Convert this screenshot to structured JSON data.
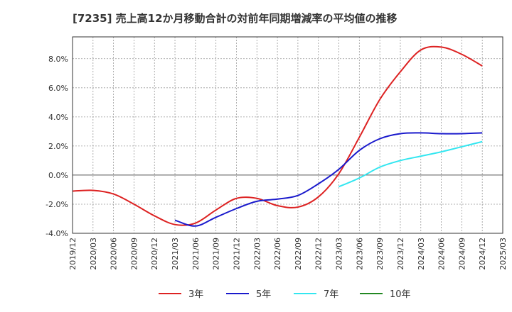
{
  "chart_data": {
    "type": "line",
    "title": "[7235]  売上高12か月移動合計の対前年同期増減率の平均値の推移",
    "xlabel": "",
    "ylabel": "",
    "x_ticks": [
      "2019/12",
      "2020/03",
      "2020/06",
      "2020/09",
      "2020/12",
      "2021/03",
      "2021/06",
      "2021/09",
      "2021/12",
      "2022/03",
      "2022/06",
      "2022/09",
      "2022/12",
      "2023/03",
      "2023/06",
      "2023/09",
      "2023/12",
      "2024/03",
      "2024/06",
      "2024/09",
      "2024/12",
      "2025/03"
    ],
    "ylim": [
      -4.0,
      9.5
    ],
    "y_ticks": [
      -4.0,
      -2.0,
      0.0,
      2.0,
      4.0,
      6.0,
      8.0
    ],
    "y_tick_labels": [
      "-4.0%",
      "-2.0%",
      "0.0%",
      "2.0%",
      "4.0%",
      "6.0%",
      "8.0%"
    ],
    "grid": true,
    "legend_position": "bottom",
    "series": [
      {
        "name": "3年",
        "color": "#dd2222",
        "x": [
          "2019/12",
          "2020/03",
          "2020/06",
          "2020/09",
          "2020/12",
          "2021/03",
          "2021/06",
          "2021/09",
          "2021/12",
          "2022/03",
          "2022/06",
          "2022/09",
          "2022/12",
          "2023/03",
          "2023/06",
          "2023/09",
          "2023/12",
          "2024/03",
          "2024/06",
          "2024/09",
          "2024/12"
        ],
        "values": [
          -1.1,
          -1.05,
          -1.3,
          -2.0,
          -2.8,
          -3.4,
          -3.3,
          -2.4,
          -1.6,
          -1.6,
          -2.1,
          -2.2,
          -1.5,
          0.1,
          2.6,
          5.2,
          7.1,
          8.6,
          8.8,
          8.3,
          7.5
        ]
      },
      {
        "name": "5年",
        "color": "#1a1acc",
        "x": [
          "2021/03",
          "2021/06",
          "2021/09",
          "2021/12",
          "2022/03",
          "2022/06",
          "2022/09",
          "2022/12",
          "2023/03",
          "2023/06",
          "2023/09",
          "2023/12",
          "2024/03",
          "2024/06",
          "2024/09",
          "2024/12"
        ],
        "values": [
          -3.1,
          -3.5,
          -2.9,
          -2.3,
          -1.8,
          -1.65,
          -1.4,
          -0.6,
          0.4,
          1.7,
          2.5,
          2.85,
          2.9,
          2.85,
          2.85,
          2.9
        ]
      },
      {
        "name": "7年",
        "color": "#33e6f0",
        "x": [
          "2023/03",
          "2023/06",
          "2023/09",
          "2023/12",
          "2024/03",
          "2024/06",
          "2024/09",
          "2024/12"
        ],
        "values": [
          -0.8,
          -0.2,
          0.55,
          1.0,
          1.3,
          1.6,
          1.95,
          2.3
        ]
      },
      {
        "name": "10年",
        "color": "#228822",
        "x": [],
        "values": []
      }
    ]
  }
}
